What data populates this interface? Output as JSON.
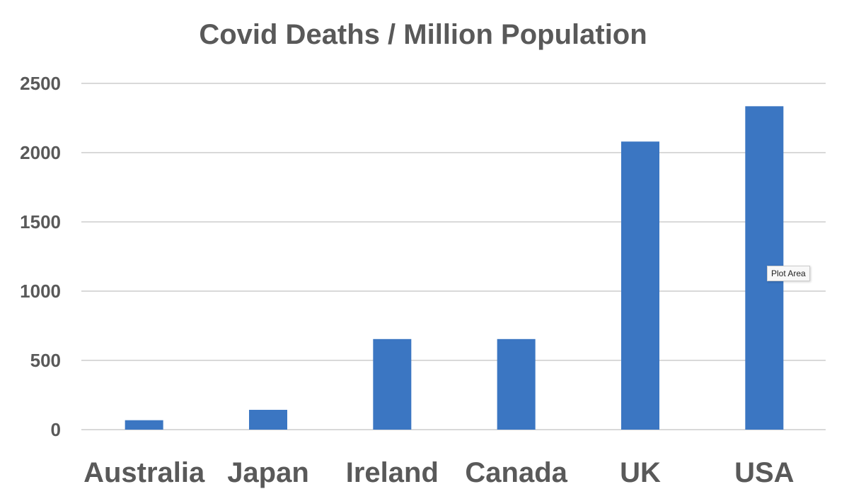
{
  "chart_data": {
    "type": "bar",
    "title": "Covid Deaths / Million Population",
    "categories": [
      "Australia",
      "Japan",
      "Ireland",
      "Canada",
      "UK",
      "USA"
    ],
    "values": [
      68,
      143,
      654,
      654,
      2080,
      2335
    ],
    "yticks": [
      "0",
      "500",
      "1000",
      "1500",
      "2000",
      "2500"
    ],
    "ylim": [
      0,
      2500
    ],
    "xlabel": "",
    "ylabel": "",
    "grid": true,
    "bar_color": "#3b76c2"
  },
  "tooltip": "Plot Area"
}
